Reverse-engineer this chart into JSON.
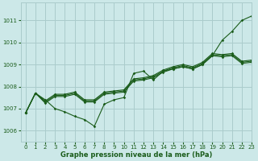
{
  "title": "Graphe pression niveau de la mer (hPa)",
  "bg_color": "#cce8e8",
  "grid_color": "#aacccc",
  "line_color": "#1a5c1a",
  "xlim": [
    -0.5,
    23
  ],
  "ylim": [
    1005.5,
    1011.8
  ],
  "yticks": [
    1006,
    1007,
    1008,
    1009,
    1010,
    1011
  ],
  "xticks": [
    0,
    1,
    2,
    3,
    4,
    5,
    6,
    7,
    8,
    9,
    10,
    11,
    12,
    13,
    14,
    15,
    16,
    17,
    18,
    19,
    20,
    21,
    22,
    23
  ],
  "series": [
    [
      1006.8,
      1007.7,
      1007.4,
      1007.6,
      1007.6,
      1007.7,
      1006.6,
      1006.2,
      1007.2,
      1007.4,
      1007.5,
      1008.6,
      1008.7,
      1008.3,
      1008.7,
      1008.8,
      1008.9,
      1008.8,
      1009.0,
      1009.4,
      1010.1,
      1010.5,
      1011.0,
      1011.2
    ],
    [
      1006.8,
      1007.7,
      1007.3,
      1007.6,
      1007.6,
      1007.7,
      1007.0,
      1007.3,
      1007.7,
      1007.8,
      1007.9,
      1008.3,
      1008.4,
      1008.5,
      1008.7,
      1008.9,
      1009.0,
      1008.9,
      1009.1,
      1009.5,
      1009.4,
      1009.5,
      1009.1,
      1009.2
    ],
    [
      1006.8,
      1007.7,
      1007.3,
      1007.6,
      1007.6,
      1007.7,
      1007.0,
      1007.3,
      1007.7,
      1007.8,
      1007.9,
      1008.3,
      1008.4,
      1008.5,
      1008.7,
      1008.9,
      1009.0,
      1008.9,
      1009.1,
      1009.5,
      1009.4,
      1009.5,
      1009.1,
      1009.2
    ],
    [
      1006.8,
      1007.7,
      1007.3,
      1007.6,
      1007.6,
      1007.7,
      1007.0,
      1007.3,
      1007.7,
      1007.8,
      1007.9,
      1008.3,
      1008.4,
      1008.5,
      1008.7,
      1008.9,
      1009.0,
      1008.9,
      1009.1,
      1009.5,
      1009.4,
      1009.5,
      1009.1,
      1009.2
    ]
  ],
  "series_divergent": [
    [
      1006.8,
      1007.7,
      1007.4,
      1007.0,
      1006.8,
      1006.6,
      1006.5,
      1006.2,
      1007.2,
      1007.4,
      1007.5,
      1008.6,
      1008.7,
      1008.3,
      1008.7,
      1008.8,
      1008.9,
      1008.8,
      1009.0,
      1009.4,
      1010.1,
      1010.5,
      1011.0,
      1011.2
    ],
    [
      1006.8,
      1007.7,
      1007.35,
      1007.6,
      1007.6,
      1007.7,
      1007.4,
      1007.35,
      1007.7,
      1007.75,
      1007.8,
      1008.3,
      1008.35,
      1008.5,
      1008.75,
      1008.85,
      1008.9,
      1008.85,
      1009.05,
      1009.45,
      1009.4,
      1009.5,
      1009.1,
      1009.1
    ],
    [
      1006.8,
      1007.7,
      1007.3,
      1007.55,
      1007.55,
      1007.65,
      1007.35,
      1007.3,
      1007.65,
      1007.7,
      1007.75,
      1008.25,
      1008.3,
      1008.45,
      1008.7,
      1008.8,
      1008.85,
      1008.8,
      1009.0,
      1009.4,
      1009.35,
      1009.45,
      1009.05,
      1009.05
    ],
    [
      1006.8,
      1007.7,
      1007.25,
      1007.5,
      1007.5,
      1007.6,
      1007.3,
      1007.25,
      1007.6,
      1007.65,
      1007.7,
      1008.2,
      1008.25,
      1008.4,
      1008.65,
      1008.75,
      1008.8,
      1008.75,
      1008.95,
      1009.35,
      1009.3,
      1009.4,
      1009.0,
      1009.0
    ]
  ]
}
